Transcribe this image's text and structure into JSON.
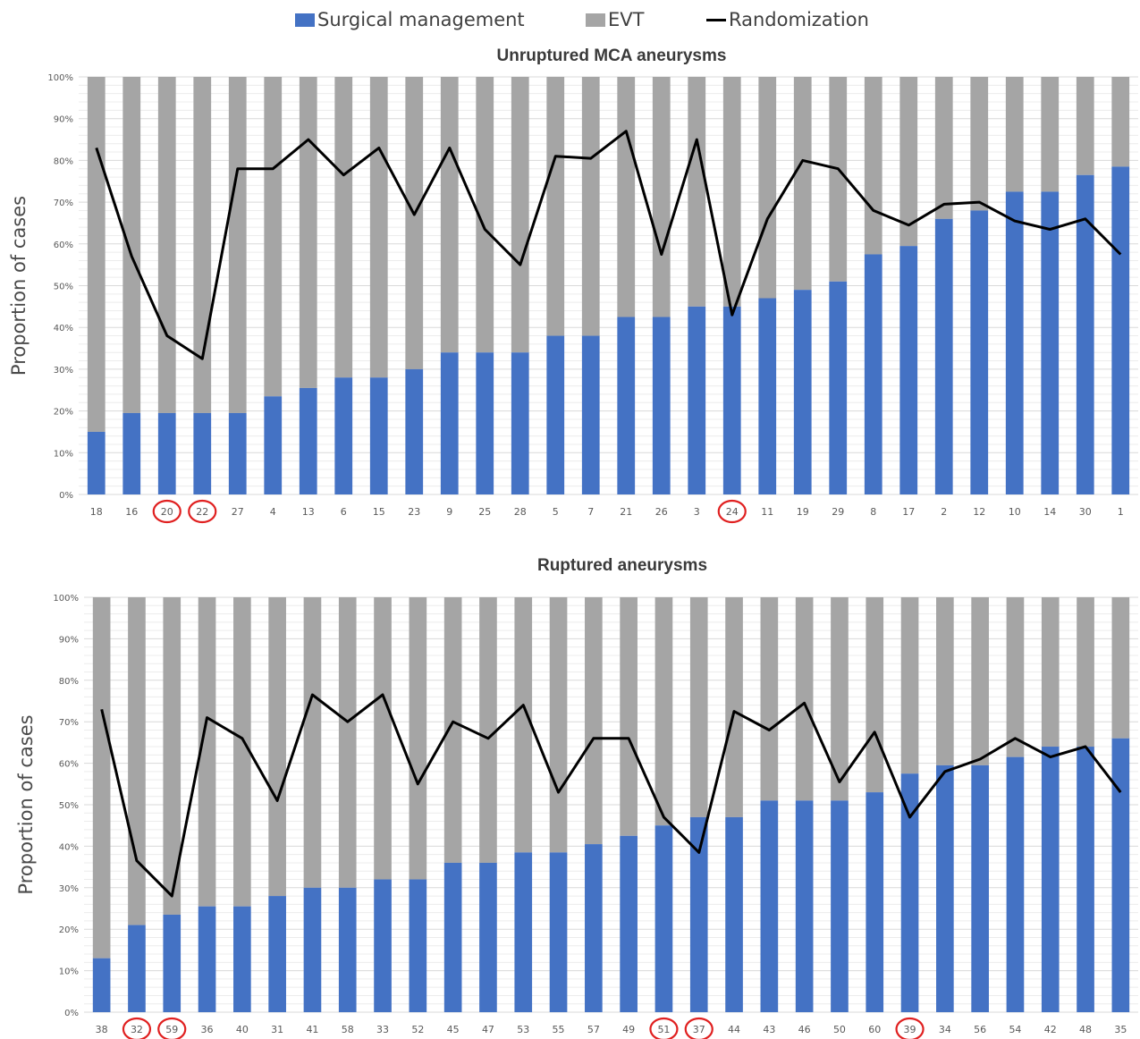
{
  "legend": {
    "items": [
      {
        "label": "Surgical management",
        "color": "#4472c4",
        "kind": "box"
      },
      {
        "label": "EVT",
        "color": "#a5a5a5",
        "kind": "box"
      },
      {
        "label": "Randomization",
        "color": "#000000",
        "kind": "line"
      }
    ]
  },
  "chart_data": [
    {
      "type": "bar",
      "stacked": true,
      "title": "Unruptured MCA aneurysms",
      "ylabel": "Proportion of cases",
      "ylim": [
        0,
        100
      ],
      "yticks": [
        "0%",
        "10%",
        "20%",
        "30%",
        "40%",
        "50%",
        "60%",
        "70%",
        "80%",
        "90%",
        "100%"
      ],
      "grid": true,
      "categories": [
        "18",
        "16",
        "20",
        "22",
        "27",
        "4",
        "13",
        "6",
        "15",
        "23",
        "9",
        "25",
        "28",
        "5",
        "7",
        "21",
        "26",
        "3",
        "24",
        "11",
        "19",
        "29",
        "8",
        "17",
        "2",
        "12",
        "10",
        "14",
        "30",
        "1"
      ],
      "circled": [
        "20",
        "22",
        "24"
      ],
      "circle_color": "#e02020",
      "series": [
        {
          "name": "Surgical management",
          "color": "#4472c4",
          "values": [
            15,
            19.5,
            19.5,
            19.5,
            19.5,
            23.5,
            25.5,
            28,
            28,
            30,
            34,
            34,
            34,
            38,
            38,
            42.5,
            42.5,
            45,
            45,
            47,
            49,
            51,
            57.5,
            59.5,
            66,
            68,
            72.5,
            72.5,
            76.5,
            78.5
          ]
        },
        {
          "name": "EVT",
          "color": "#a5a5a5",
          "values": [
            85,
            80.5,
            80.5,
            80.5,
            80.5,
            76.5,
            74.5,
            72,
            72,
            70,
            66,
            66,
            66,
            62,
            62,
            57.5,
            57.5,
            55,
            55,
            53,
            51,
            49,
            42.5,
            40.5,
            34,
            32,
            27.5,
            27.5,
            23.5,
            21.5
          ]
        },
        {
          "name": "Randomization",
          "type": "line",
          "color": "#000000",
          "values": [
            83,
            57,
            38,
            32.5,
            78,
            78,
            85,
            76.5,
            83,
            67,
            83,
            63.5,
            55,
            81,
            80.5,
            87,
            57.5,
            85,
            43,
            66,
            80,
            78,
            68,
            64.5,
            69.5,
            70,
            65.5,
            63.5,
            66,
            57.5
          ]
        }
      ]
    },
    {
      "type": "bar",
      "stacked": true,
      "title": "Ruptured aneurysms",
      "ylabel": "Proportion of cases",
      "ylim": [
        0,
        100
      ],
      "yticks": [
        "0%",
        "10%",
        "20%",
        "30%",
        "40%",
        "50%",
        "60%",
        "70%",
        "80%",
        "90%",
        "100%"
      ],
      "grid": true,
      "categories": [
        "38",
        "32",
        "59",
        "36",
        "40",
        "31",
        "41",
        "58",
        "33",
        "52",
        "45",
        "47",
        "53",
        "55",
        "57",
        "49",
        "51",
        "37",
        "44",
        "43",
        "46",
        "50",
        "60",
        "39",
        "34",
        "56",
        "54",
        "42",
        "48",
        "35"
      ],
      "circled": [
        "32",
        "59",
        "51",
        "37",
        "39"
      ],
      "circle_color": "#e02020",
      "series": [
        {
          "name": "Surgical management",
          "color": "#4472c4",
          "values": [
            13,
            21,
            23.5,
            25.5,
            25.5,
            28,
            30,
            30,
            32,
            32,
            36,
            36,
            38.5,
            38.5,
            40.5,
            42.5,
            45,
            47,
            47,
            51,
            51,
            51,
            53,
            57.5,
            59.5,
            59.5,
            61.5,
            64,
            64,
            66
          ]
        },
        {
          "name": "EVT",
          "color": "#a5a5a5",
          "values": [
            87,
            79,
            76.5,
            74.5,
            74.5,
            72,
            70,
            70,
            68,
            68,
            64,
            64,
            61.5,
            61.5,
            59.5,
            57.5,
            55,
            53,
            53,
            49,
            49,
            49,
            47,
            42.5,
            40.5,
            40.5,
            38.5,
            36,
            36,
            34
          ]
        },
        {
          "name": "Randomization",
          "type": "line",
          "color": "#000000",
          "values": [
            73,
            36.5,
            28,
            71,
            66,
            51,
            76.5,
            70,
            76.5,
            55,
            70,
            66,
            74,
            53,
            66,
            66,
            47,
            38.5,
            72.5,
            68,
            74.5,
            55.5,
            67.5,
            47,
            58,
            61,
            66,
            61.5,
            64,
            53
          ]
        }
      ]
    }
  ]
}
